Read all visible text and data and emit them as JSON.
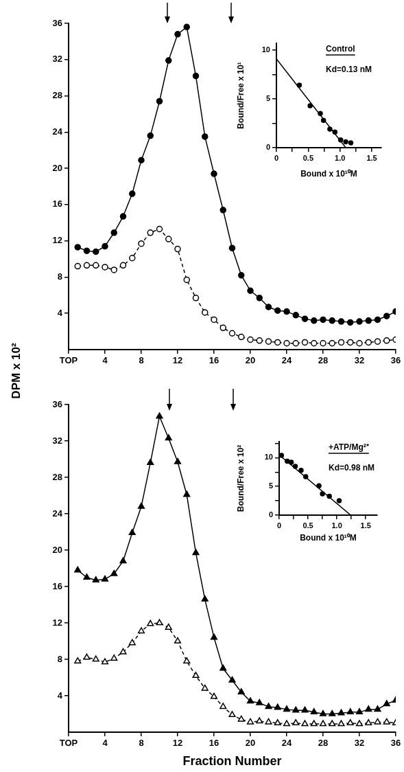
{
  "chart_data": [
    {
      "type": "line",
      "ylabel": "DPM x 10²",
      "x": [
        1,
        2,
        3,
        4,
        5,
        6,
        7,
        8,
        9,
        10,
        11,
        12,
        13,
        14,
        15,
        16,
        17,
        18,
        19,
        20,
        21,
        22,
        23,
        24,
        25,
        26,
        27,
        28,
        29,
        30,
        31,
        32,
        33,
        34,
        35,
        36
      ],
      "series": [
        {
          "color": "#000000",
          "marker": "circle",
          "line_style": "solid",
          "values": [
            11.3,
            10.9,
            10.8,
            11.4,
            12.9,
            14.7,
            17.2,
            20.9,
            23.6,
            27.4,
            31.9,
            34.8,
            35.6,
            30.2,
            23.5,
            19.4,
            15.4,
            11.2,
            8.2,
            6.5,
            5.7,
            4.7,
            4.3,
            4.2,
            3.8,
            3.4,
            3.2,
            3.3,
            3.2,
            3.1,
            3.0,
            3.1,
            3.2,
            3.3,
            3.7,
            4.2
          ]
        },
        {
          "color": "#000000",
          "marker": "circle",
          "line_style": "dashed",
          "values": [
            9.2,
            9.3,
            9.3,
            9.1,
            8.8,
            9.3,
            10.1,
            11.7,
            12.9,
            13.3,
            12.2,
            11.1,
            7.7,
            5.7,
            4.1,
            3.3,
            2.4,
            1.8,
            1.4,
            1.1,
            1.0,
            0.9,
            0.8,
            0.7,
            0.7,
            0.8,
            0.7,
            0.7,
            0.7,
            0.8,
            0.8,
            0.7,
            0.8,
            0.9,
            1.0,
            1.1
          ]
        }
      ],
      "xlim": [
        0,
        36
      ],
      "xticks": [
        {
          "value": 0,
          "label": "TOP"
        },
        4,
        8,
        12,
        16,
        20,
        24,
        28,
        32,
        36
      ],
      "ylim": [
        0,
        36
      ],
      "yticks": [
        4,
        8,
        12,
        16,
        20,
        24,
        28,
        32,
        36
      ]
    },
    {
      "type": "scatter",
      "xlabel": "Bound x 10¹⁰M",
      "ylabel": "Bound/Free x 10¹",
      "series": [
        {
          "type": "scatter",
          "color": "#000000",
          "marker": "circle",
          "x": [
            0.36,
            0.53,
            0.69,
            0.74,
            0.84,
            0.92,
            1.01,
            1.09,
            1.17
          ],
          "values": [
            6.4,
            4.3,
            3.5,
            2.8,
            1.9,
            1.6,
            0.8,
            0.6,
            0.5
          ]
        },
        {
          "type": "line",
          "color": "#000000",
          "marker": "none",
          "line_style": "solid",
          "x": [
            0,
            1.09
          ],
          "values": [
            9.1,
            0
          ]
        }
      ],
      "xlim": [
        0,
        1.65
      ],
      "xticks": [
        0,
        {
          "value": 0.25,
          "label": null
        },
        0.5,
        {
          "value": 0.75,
          "label": null
        },
        {
          "value": 1,
          "label": "1.0"
        },
        {
          "value": 1.25,
          "label": null
        },
        1.5
      ],
      "ylim": [
        0,
        10.7
      ],
      "yticks": [
        0,
        {
          "value": 2.5,
          "label": null
        },
        5,
        {
          "value": 7.5,
          "label": null
        },
        10
      ],
      "annotations": [
        "Control",
        "Kd=0.13 nM"
      ]
    },
    {
      "type": "line",
      "xlabel": "Fraction Number",
      "x": [
        1,
        2,
        3,
        4,
        5,
        6,
        7,
        8,
        9,
        10,
        11,
        12,
        13,
        14,
        15,
        16,
        17,
        18,
        19,
        20,
        21,
        22,
        23,
        24,
        25,
        26,
        27,
        28,
        29,
        30,
        31,
        32,
        33,
        34,
        35,
        36
      ],
      "series": [
        {
          "color": "#000000",
          "marker": "triangle",
          "line_style": "solid",
          "values": [
            17.8,
            17.0,
            16.7,
            16.8,
            17.4,
            18.8,
            21.9,
            24.8,
            29.6,
            34.7,
            32.3,
            29.7,
            26.1,
            19.7,
            14.6,
            10.4,
            7.0,
            5.7,
            4.4,
            3.4,
            3.2,
            2.8,
            2.7,
            2.5,
            2.4,
            2.4,
            2.2,
            2.0,
            2.0,
            2.1,
            2.2,
            2.2,
            2.5,
            2.5,
            3.1,
            3.5
          ]
        },
        {
          "color": "#000000",
          "marker": "triangle",
          "line_style": "dashed",
          "values": [
            7.8,
            8.2,
            8.0,
            7.7,
            8.1,
            8.8,
            9.8,
            11.1,
            11.9,
            12.0,
            11.5,
            10.0,
            7.8,
            6.2,
            4.8,
            3.9,
            2.8,
            1.9,
            1.4,
            1.1,
            1.2,
            1.1,
            1.0,
            0.9,
            1.0,
            0.9,
            0.9,
            0.9,
            0.9,
            0.9,
            1.0,
            0.9,
            1.0,
            1.1,
            1.1,
            1.0
          ]
        }
      ],
      "xlim": [
        0,
        36
      ],
      "xticks": [
        {
          "value": 0,
          "label": "TOP"
        },
        4,
        8,
        12,
        16,
        20,
        24,
        28,
        32,
        36
      ],
      "ylim": [
        0,
        36
      ],
      "yticks": [
        4,
        8,
        12,
        16,
        20,
        24,
        28,
        32,
        36
      ]
    },
    {
      "type": "scatter",
      "xlabel": "Bound x 10¹⁰M",
      "ylabel": "Bound/Free x 10²",
      "series": [
        {
          "type": "scatter",
          "color": "#000000",
          "marker": "circle",
          "x": [
            0.04,
            0.14,
            0.21,
            0.28,
            0.38,
            0.46,
            0.69,
            0.75,
            0.87,
            1.04
          ],
          "values": [
            10.4,
            9.4,
            9.2,
            8.5,
            7.8,
            6.7,
            5.1,
            3.7,
            3.3,
            2.5
          ]
        },
        {
          "type": "line",
          "color": "#000000",
          "marker": "none",
          "line_style": "solid",
          "x": [
            0,
            1.24
          ],
          "values": [
            10.5,
            0
          ]
        }
      ],
      "xlim": [
        0,
        1.7
      ],
      "xticks": [
        0,
        {
          "value": 0.25,
          "label": null
        },
        0.5,
        {
          "value": 0.75,
          "label": null
        },
        {
          "value": 1,
          "label": "1.0"
        },
        {
          "value": 1.25,
          "label": null
        },
        1.5
      ],
      "ylim": [
        0,
        12.8
      ],
      "yticks": [
        0,
        {
          "value": 2.5,
          "label": null
        },
        5,
        {
          "value": 7.5,
          "label": null
        },
        10,
        {
          "value": 12.5,
          "label": null
        }
      ],
      "annotations": [
        "+ATP/Mg²⁺",
        "Kd=0.98 nM"
      ]
    }
  ]
}
